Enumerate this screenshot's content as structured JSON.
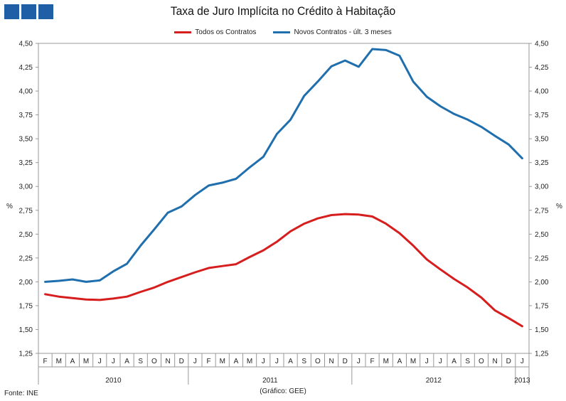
{
  "header": {
    "title": "Taxa de Juro Implícita no Crédito à Habitação"
  },
  "footer": {
    "source": "Fonte: INE",
    "credit": "(Gráfico: GEE)"
  },
  "chart_data": {
    "type": "line",
    "title": "Taxa de Juro Implícita no Crédito à Habitação",
    "ylabel_left": "%",
    "ylabel_right": "%",
    "ylim": [
      1.25,
      4.5
    ],
    "yticks": [
      "1,25",
      "1,50",
      "1,75",
      "2,00",
      "2,25",
      "2,50",
      "2,75",
      "3,00",
      "3,25",
      "3,50",
      "3,75",
      "4,00",
      "4,25",
      "4,50"
    ],
    "x": [
      "F",
      "M",
      "A",
      "M",
      "J",
      "J",
      "A",
      "S",
      "O",
      "N",
      "D",
      "J",
      "F",
      "M",
      "A",
      "M",
      "J",
      "J",
      "A",
      "S",
      "O",
      "N",
      "D",
      "J",
      "F",
      "M",
      "A",
      "M",
      "J",
      "J",
      "A",
      "S",
      "O",
      "N",
      "D",
      "J"
    ],
    "years": [
      {
        "label": "2010"
      },
      {
        "label": "2011"
      },
      {
        "label": "2012"
      },
      {
        "label": "2013"
      }
    ],
    "legend_position": "top-center",
    "series": [
      {
        "name": "Todos os Contratos",
        "color": "#d71e1e",
        "values": [
          1.87,
          1.845,
          1.83,
          1.815,
          1.81,
          1.825,
          1.845,
          1.895,
          1.94,
          2.0,
          2.05,
          2.1,
          2.145,
          2.165,
          2.185,
          2.26,
          2.33,
          2.42,
          2.53,
          2.61,
          2.665,
          2.7,
          2.71,
          2.705,
          2.685,
          2.61,
          2.51,
          2.38,
          2.235,
          2.13,
          2.03,
          1.94,
          1.835,
          1.7,
          1.62,
          1.535
        ]
      },
      {
        "name": "Novos Contratos - últ. 3 meses",
        "color": "#1f6fae",
        "values": [
          2.0,
          2.01,
          2.025,
          2.0,
          2.015,
          2.11,
          2.19,
          2.38,
          2.55,
          2.725,
          2.79,
          2.91,
          3.01,
          3.04,
          3.08,
          3.2,
          3.31,
          3.55,
          3.7,
          3.95,
          4.1,
          4.26,
          4.32,
          4.255,
          4.44,
          4.43,
          4.37,
          4.1,
          3.94,
          3.84,
          3.76,
          3.7,
          3.625,
          3.53,
          3.44,
          3.295
        ]
      }
    ]
  }
}
